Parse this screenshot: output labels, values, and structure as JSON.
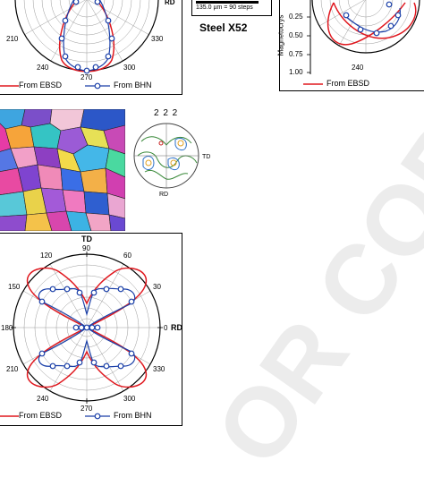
{
  "caption_title": "Steel X52",
  "scalebar": {
    "label": "135.0 µm = 90 steps"
  },
  "top_left": {
    "rd_label": "RD",
    "angles": [
      "210",
      "240",
      "270",
      "300",
      "330"
    ],
    "legend": {
      "ebsd": "From  EBSD",
      "bhn": "From  BHN"
    }
  },
  "top_right": {
    "ylabel": "Magnetocrys",
    "ticks": [
      "0.25",
      "0.50",
      "0.75",
      "1.00"
    ],
    "angles": [
      "240"
    ],
    "legend": {
      "ebsd": "From  EBSD"
    }
  },
  "pole_figure": {
    "title": "2 2 2",
    "td": "TD",
    "rd": "RD"
  },
  "bottom": {
    "td_label": "TD",
    "rd_label": "RD",
    "angles": {
      "a90": "90",
      "a120": "120",
      "a60": "60",
      "a150": "150",
      "a30": "30",
      "a180": "180",
      "a0": "0",
      "a210": "210",
      "a330": "330",
      "a240": "240",
      "a270": "270",
      "a300": "300"
    },
    "legend": {
      "ebsd": "From  EBSD",
      "bhn": "From  BHN"
    }
  },
  "watermark": "OR COPY",
  "colors": {
    "ebsd": "#e0181f",
    "bhn": "#1a3fa8",
    "watermark": "#999999"
  }
}
